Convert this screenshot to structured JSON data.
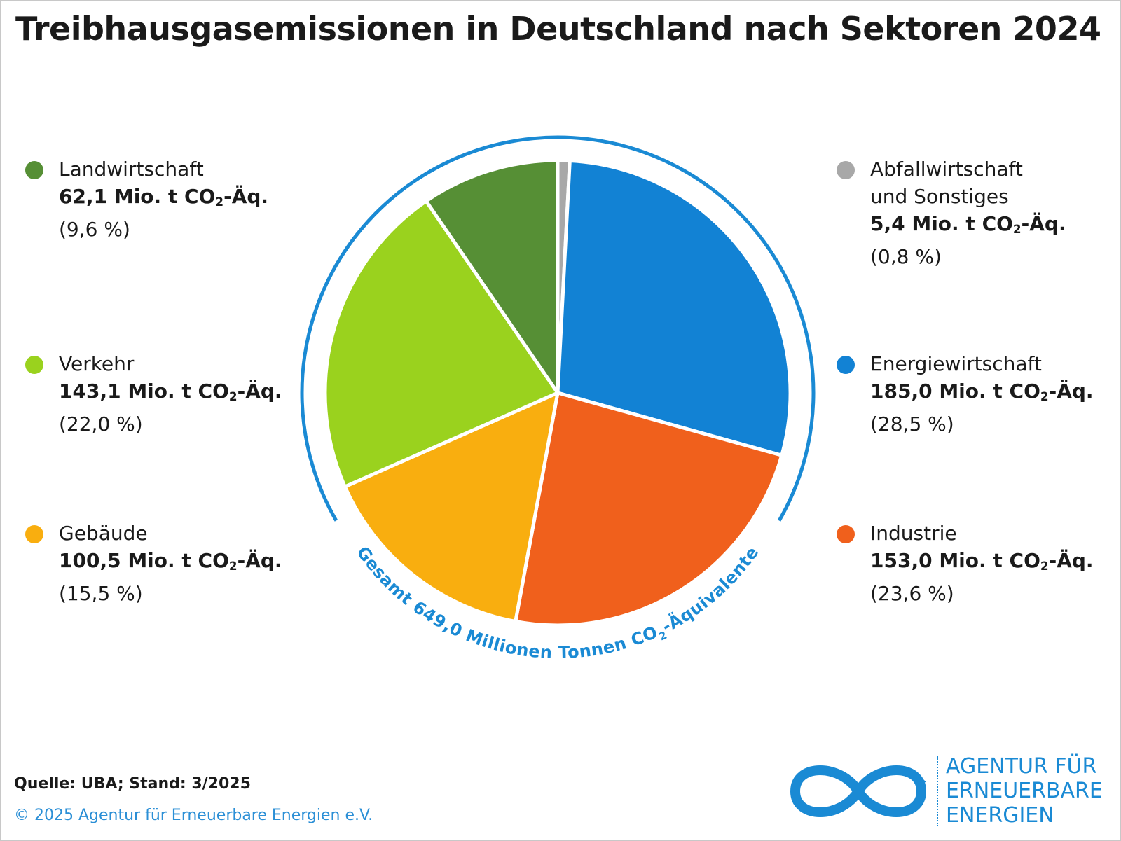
{
  "title": "Treibhausgasemissionen in Deutschland nach Sektoren 2024",
  "chart_data": {
    "type": "pie",
    "title": "Treibhausgasemissionen in Deutschland nach Sektoren 2024",
    "unit": "Mio. t CO2-Äq.",
    "total_label": "Gesamt 649,0 Millionen Tonnen CO2-Äquivalente",
    "total": 649.0,
    "slices": [
      {
        "name": "Abfallwirtschaft und Sonstiges",
        "value": 5.4,
        "percent": 0.8,
        "color": "#a8a8a8"
      },
      {
        "name": "Energiewirtschaft",
        "value": 185.0,
        "percent": 28.5,
        "color": "#1282d4"
      },
      {
        "name": "Industrie",
        "value": 153.0,
        "percent": 23.6,
        "color": "#f0601c"
      },
      {
        "name": "Gebäude",
        "value": 100.5,
        "percent": 15.5,
        "color": "#f9ae0f"
      },
      {
        "name": "Verkehr",
        "value": 143.1,
        "percent": 22.0,
        "color": "#9ad21e"
      },
      {
        "name": "Landwirtschaft",
        "value": 62.1,
        "percent": 9.6,
        "color": "#568f35"
      }
    ]
  },
  "legend": {
    "landwirtschaft": {
      "name": "Landwirtschaft",
      "value": "62,1 Mio. t CO",
      "unit_tail": "-Äq.",
      "sub": "2",
      "pct": "(9,6 %)"
    },
    "verkehr": {
      "name": "Verkehr",
      "value": "143,1 Mio. t CO",
      "unit_tail": "-Äq.",
      "sub": "2",
      "pct": "(22,0 %)"
    },
    "gebaeude": {
      "name": "Gebäude",
      "value": "100,5 Mio. t CO",
      "unit_tail": "-Äq.",
      "sub": "2",
      "pct": "(15,5 %)"
    },
    "abfall": {
      "name": "Abfallwirtschaft",
      "name2": "und Sonstiges",
      "value": "5,4 Mio. t CO",
      "unit_tail": "-Äq.",
      "sub": "2",
      "pct": "(0,8 %)"
    },
    "energie": {
      "name": "Energiewirtschaft",
      "value": "185,0 Mio. t CO",
      "unit_tail": "-Äq.",
      "sub": "2",
      "pct": "(28,5 %)"
    },
    "industrie": {
      "name": "Industrie",
      "value": "153,0 Mio. t CO",
      "unit_tail": "-Äq.",
      "sub": "2",
      "pct": "(23,6 %)"
    }
  },
  "total_arc": {
    "before": "Gesamt 649,0 Millionen Tonnen CO",
    "sub": "2",
    "after": "-Äquivalente"
  },
  "footer": {
    "source": "Quelle: UBA; Stand: 3/2025",
    "copyright": "© 2025 Agentur für Erneuerbare Energien e.V."
  },
  "logo": {
    "line1": "AGENTUR FÜR",
    "line2": "ERNEUERBARE",
    "line3": "ENERGIEN"
  },
  "colors": {
    "accent": "#1a8ad4",
    "arc": "#1a8ad4"
  }
}
